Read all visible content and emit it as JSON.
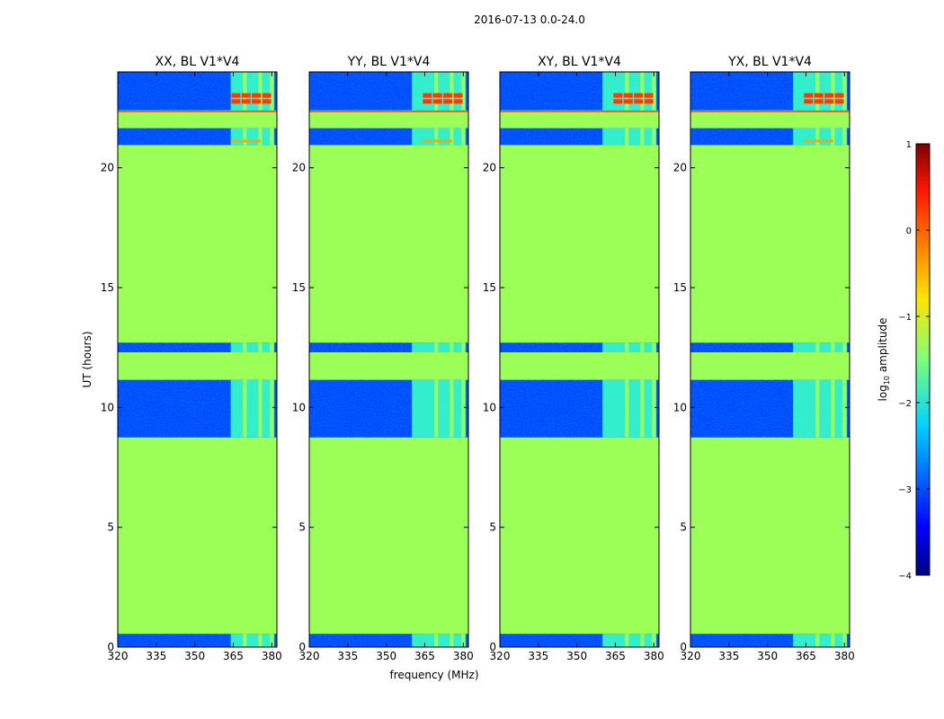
{
  "chart_data": {
    "type": "heatmap",
    "suptitle": "2016-07-13 0.0-24.0",
    "ylabel": "UT (hours)",
    "xlabel": "frequency (MHz)",
    "xlim": [
      320,
      382
    ],
    "ylim": [
      0,
      24
    ],
    "xticks": [
      320,
      335,
      350,
      365,
      380
    ],
    "yticks": [
      0,
      5,
      10,
      15,
      20
    ],
    "panels": [
      {
        "title": "XX, BL V1*V4",
        "rfi_start": 364,
        "strong_top": true,
        "strong_mid": true
      },
      {
        "title": "YY, BL V1*V4",
        "rfi_start": 360,
        "strong_top": true,
        "strong_mid": true
      },
      {
        "title": "XY, BL V1*V4",
        "rfi_start": 360,
        "strong_top": true,
        "strong_mid": false
      },
      {
        "title": "YX, BL V1*V4",
        "rfi_start": 360,
        "strong_top": true,
        "strong_mid": true
      }
    ],
    "observed_intervals_hours": [
      [
        0.0,
        0.55
      ],
      [
        8.75,
        11.15
      ],
      [
        12.3,
        12.7
      ],
      [
        20.95,
        21.65
      ],
      [
        22.4,
        24.0
      ]
    ],
    "fill_value_log10": -0.95,
    "colorbar": {
      "label": "log",
      "label_sub": "10",
      "label_rest": " amplitude",
      "min": -4,
      "max": 1,
      "ticks": [
        1,
        0,
        -1,
        -2,
        -3,
        -4
      ],
      "tick_labels": [
        "1",
        "0",
        "−1",
        "−2",
        "−3",
        "−4"
      ],
      "colormap": "jet"
    }
  },
  "colors": {
    "fill": "#9cff57",
    "noise_dark": "#0000cd",
    "noise_mid": "#0040ff",
    "rfi_cyan": "#38ffc6",
    "rfi_strong": "#ff3a00"
  }
}
